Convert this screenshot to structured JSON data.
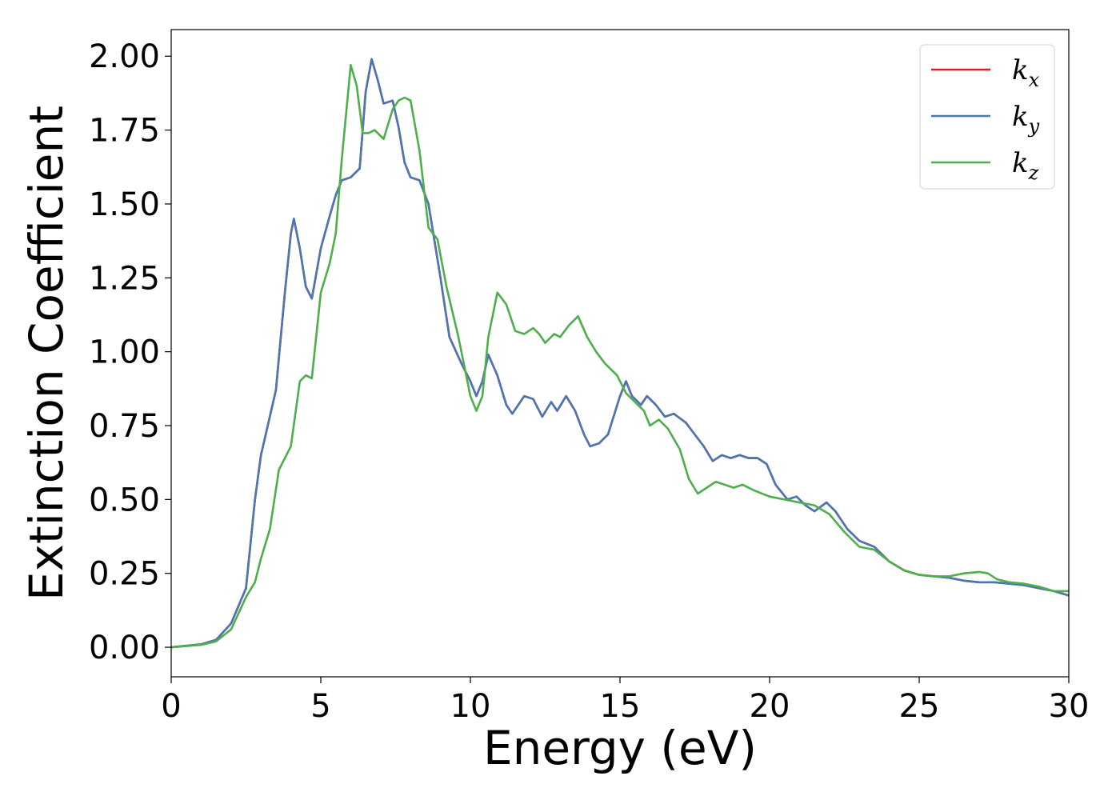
{
  "chart_data": {
    "type": "line",
    "title": "",
    "xlabel": "Energy (eV)",
    "ylabel": "Extinction Coefficient",
    "xlim": [
      0,
      30
    ],
    "ylim": [
      -0.1,
      2.09
    ],
    "x_ticks": [
      "0",
      "5",
      "10",
      "15",
      "20",
      "25",
      "30"
    ],
    "y_ticks": [
      "0.00",
      "0.25",
      "0.50",
      "0.75",
      "1.00",
      "1.25",
      "1.50",
      "1.75",
      "2.00"
    ],
    "grid": false,
    "legend_position": "top-right",
    "series": [
      {
        "name": "k_x",
        "legend_base": "k",
        "legend_sub": "x",
        "color": "#e41a1c",
        "points": [
          [
            0,
            0
          ],
          [
            1,
            0.01
          ],
          [
            1.5,
            0.025
          ],
          [
            2,
            0.08
          ],
          [
            2.5,
            0.2
          ],
          [
            2.8,
            0.5
          ],
          [
            3,
            0.65
          ],
          [
            3.5,
            0.87
          ],
          [
            3.8,
            1.2
          ],
          [
            4,
            1.4
          ],
          [
            4.1,
            1.45
          ],
          [
            4.3,
            1.35
          ],
          [
            4.5,
            1.22
          ],
          [
            4.7,
            1.18
          ],
          [
            5,
            1.35
          ],
          [
            5.3,
            1.46
          ],
          [
            5.5,
            1.53
          ],
          [
            5.7,
            1.58
          ],
          [
            6,
            1.59
          ],
          [
            6.3,
            1.62
          ],
          [
            6.5,
            1.88
          ],
          [
            6.7,
            1.99
          ],
          [
            6.9,
            1.92
          ],
          [
            7.1,
            1.84
          ],
          [
            7.4,
            1.85
          ],
          [
            7.6,
            1.76
          ],
          [
            7.8,
            1.64
          ],
          [
            8,
            1.59
          ],
          [
            8.3,
            1.58
          ],
          [
            8.6,
            1.5
          ],
          [
            9,
            1.25
          ],
          [
            9.3,
            1.05
          ],
          [
            9.7,
            0.96
          ],
          [
            10,
            0.9
          ],
          [
            10.2,
            0.85
          ],
          [
            10.4,
            0.9
          ],
          [
            10.6,
            0.99
          ],
          [
            10.9,
            0.92
          ],
          [
            11.2,
            0.82
          ],
          [
            11.4,
            0.79
          ],
          [
            11.8,
            0.85
          ],
          [
            12.1,
            0.84
          ],
          [
            12.4,
            0.78
          ],
          [
            12.7,
            0.83
          ],
          [
            12.9,
            0.8
          ],
          [
            13.2,
            0.85
          ],
          [
            13.5,
            0.8
          ],
          [
            13.8,
            0.72
          ],
          [
            14,
            0.68
          ],
          [
            14.3,
            0.69
          ],
          [
            14.6,
            0.72
          ],
          [
            15,
            0.85
          ],
          [
            15.2,
            0.9
          ],
          [
            15.4,
            0.85
          ],
          [
            15.7,
            0.82
          ],
          [
            15.9,
            0.85
          ],
          [
            16.2,
            0.82
          ],
          [
            16.5,
            0.78
          ],
          [
            16.8,
            0.79
          ],
          [
            17.2,
            0.76
          ],
          [
            17.5,
            0.72
          ],
          [
            17.8,
            0.68
          ],
          [
            18.1,
            0.63
          ],
          [
            18.4,
            0.65
          ],
          [
            18.7,
            0.64
          ],
          [
            19,
            0.65
          ],
          [
            19.3,
            0.64
          ],
          [
            19.6,
            0.64
          ],
          [
            19.9,
            0.62
          ],
          [
            20.2,
            0.55
          ],
          [
            20.6,
            0.5
          ],
          [
            20.9,
            0.51
          ],
          [
            21.2,
            0.48
          ],
          [
            21.5,
            0.46
          ],
          [
            21.9,
            0.49
          ],
          [
            22.2,
            0.46
          ],
          [
            22.6,
            0.4
          ],
          [
            23,
            0.36
          ],
          [
            23.5,
            0.34
          ],
          [
            24,
            0.29
          ],
          [
            24.5,
            0.26
          ],
          [
            25,
            0.245
          ],
          [
            25.5,
            0.24
          ],
          [
            26,
            0.235
          ],
          [
            26.5,
            0.225
          ],
          [
            27,
            0.22
          ],
          [
            27.5,
            0.22
          ],
          [
            28,
            0.215
          ],
          [
            28.5,
            0.21
          ],
          [
            29,
            0.2
          ],
          [
            29.5,
            0.19
          ],
          [
            30,
            0.175
          ]
        ]
      },
      {
        "name": "k_y",
        "legend_base": "k",
        "legend_sub": "y",
        "color": "#4a77b4",
        "points": [
          [
            0,
            0
          ],
          [
            1,
            0.01
          ],
          [
            1.5,
            0.025
          ],
          [
            2,
            0.08
          ],
          [
            2.5,
            0.2
          ],
          [
            2.8,
            0.5
          ],
          [
            3,
            0.65
          ],
          [
            3.5,
            0.87
          ],
          [
            3.8,
            1.2
          ],
          [
            4,
            1.4
          ],
          [
            4.1,
            1.45
          ],
          [
            4.3,
            1.35
          ],
          [
            4.5,
            1.22
          ],
          [
            4.7,
            1.18
          ],
          [
            5,
            1.35
          ],
          [
            5.3,
            1.46
          ],
          [
            5.5,
            1.53
          ],
          [
            5.7,
            1.58
          ],
          [
            6,
            1.59
          ],
          [
            6.3,
            1.62
          ],
          [
            6.5,
            1.88
          ],
          [
            6.7,
            1.99
          ],
          [
            6.9,
            1.92
          ],
          [
            7.1,
            1.84
          ],
          [
            7.4,
            1.85
          ],
          [
            7.6,
            1.76
          ],
          [
            7.8,
            1.64
          ],
          [
            8,
            1.59
          ],
          [
            8.3,
            1.58
          ],
          [
            8.6,
            1.5
          ],
          [
            9,
            1.25
          ],
          [
            9.3,
            1.05
          ],
          [
            9.7,
            0.96
          ],
          [
            10,
            0.9
          ],
          [
            10.2,
            0.85
          ],
          [
            10.4,
            0.9
          ],
          [
            10.6,
            0.99
          ],
          [
            10.9,
            0.92
          ],
          [
            11.2,
            0.82
          ],
          [
            11.4,
            0.79
          ],
          [
            11.8,
            0.85
          ],
          [
            12.1,
            0.84
          ],
          [
            12.4,
            0.78
          ],
          [
            12.7,
            0.83
          ],
          [
            12.9,
            0.8
          ],
          [
            13.2,
            0.85
          ],
          [
            13.5,
            0.8
          ],
          [
            13.8,
            0.72
          ],
          [
            14,
            0.68
          ],
          [
            14.3,
            0.69
          ],
          [
            14.6,
            0.72
          ],
          [
            15,
            0.85
          ],
          [
            15.2,
            0.9
          ],
          [
            15.4,
            0.85
          ],
          [
            15.7,
            0.82
          ],
          [
            15.9,
            0.85
          ],
          [
            16.2,
            0.82
          ],
          [
            16.5,
            0.78
          ],
          [
            16.8,
            0.79
          ],
          [
            17.2,
            0.76
          ],
          [
            17.5,
            0.72
          ],
          [
            17.8,
            0.68
          ],
          [
            18.1,
            0.63
          ],
          [
            18.4,
            0.65
          ],
          [
            18.7,
            0.64
          ],
          [
            19,
            0.65
          ],
          [
            19.3,
            0.64
          ],
          [
            19.6,
            0.64
          ],
          [
            19.9,
            0.62
          ],
          [
            20.2,
            0.55
          ],
          [
            20.6,
            0.5
          ],
          [
            20.9,
            0.51
          ],
          [
            21.2,
            0.48
          ],
          [
            21.5,
            0.46
          ],
          [
            21.9,
            0.49
          ],
          [
            22.2,
            0.46
          ],
          [
            22.6,
            0.4
          ],
          [
            23,
            0.36
          ],
          [
            23.5,
            0.34
          ],
          [
            24,
            0.29
          ],
          [
            24.5,
            0.26
          ],
          [
            25,
            0.245
          ],
          [
            25.5,
            0.24
          ],
          [
            26,
            0.235
          ],
          [
            26.5,
            0.225
          ],
          [
            27,
            0.22
          ],
          [
            27.5,
            0.22
          ],
          [
            28,
            0.215
          ],
          [
            28.5,
            0.21
          ],
          [
            29,
            0.2
          ],
          [
            29.5,
            0.19
          ],
          [
            30,
            0.175
          ]
        ]
      },
      {
        "name": "k_z",
        "legend_base": "k",
        "legend_sub": "z",
        "color": "#4daf4a",
        "points": [
          [
            0,
            0
          ],
          [
            1,
            0.008
          ],
          [
            1.5,
            0.02
          ],
          [
            2,
            0.06
          ],
          [
            2.5,
            0.17
          ],
          [
            2.8,
            0.22
          ],
          [
            3,
            0.3
          ],
          [
            3.3,
            0.4
          ],
          [
            3.6,
            0.6
          ],
          [
            4,
            0.68
          ],
          [
            4.3,
            0.9
          ],
          [
            4.5,
            0.92
          ],
          [
            4.7,
            0.91
          ],
          [
            5,
            1.2
          ],
          [
            5.3,
            1.3
          ],
          [
            5.5,
            1.4
          ],
          [
            5.7,
            1.65
          ],
          [
            6,
            1.97
          ],
          [
            6.2,
            1.9
          ],
          [
            6.4,
            1.74
          ],
          [
            6.6,
            1.74
          ],
          [
            6.8,
            1.75
          ],
          [
            7.1,
            1.72
          ],
          [
            7.4,
            1.82
          ],
          [
            7.6,
            1.85
          ],
          [
            7.8,
            1.86
          ],
          [
            8,
            1.85
          ],
          [
            8.3,
            1.68
          ],
          [
            8.6,
            1.42
          ],
          [
            8.9,
            1.38
          ],
          [
            9.2,
            1.22
          ],
          [
            9.6,
            1.05
          ],
          [
            10,
            0.85
          ],
          [
            10.2,
            0.8
          ],
          [
            10.4,
            0.85
          ],
          [
            10.6,
            1.05
          ],
          [
            10.9,
            1.2
          ],
          [
            11.2,
            1.16
          ],
          [
            11.5,
            1.07
          ],
          [
            11.8,
            1.06
          ],
          [
            12.1,
            1.08
          ],
          [
            12.3,
            1.06
          ],
          [
            12.5,
            1.03
          ],
          [
            12.8,
            1.06
          ],
          [
            13,
            1.05
          ],
          [
            13.3,
            1.09
          ],
          [
            13.6,
            1.12
          ],
          [
            13.9,
            1.05
          ],
          [
            14.2,
            1.0
          ],
          [
            14.5,
            0.96
          ],
          [
            14.9,
            0.92
          ],
          [
            15.2,
            0.86
          ],
          [
            15.5,
            0.83
          ],
          [
            15.8,
            0.8
          ],
          [
            16,
            0.75
          ],
          [
            16.3,
            0.77
          ],
          [
            16.6,
            0.74
          ],
          [
            17,
            0.67
          ],
          [
            17.3,
            0.57
          ],
          [
            17.6,
            0.52
          ],
          [
            17.9,
            0.54
          ],
          [
            18.2,
            0.56
          ],
          [
            18.5,
            0.55
          ],
          [
            18.8,
            0.54
          ],
          [
            19.1,
            0.55
          ],
          [
            19.5,
            0.53
          ],
          [
            20,
            0.51
          ],
          [
            20.5,
            0.5
          ],
          [
            21,
            0.49
          ],
          [
            21.5,
            0.48
          ],
          [
            22,
            0.45
          ],
          [
            22.5,
            0.39
          ],
          [
            23,
            0.34
          ],
          [
            23.5,
            0.33
          ],
          [
            24,
            0.29
          ],
          [
            24.5,
            0.26
          ],
          [
            25,
            0.245
          ],
          [
            25.5,
            0.24
          ],
          [
            26,
            0.24
          ],
          [
            26.5,
            0.25
          ],
          [
            27,
            0.255
          ],
          [
            27.3,
            0.25
          ],
          [
            27.6,
            0.23
          ],
          [
            28,
            0.22
          ],
          [
            28.5,
            0.215
          ],
          [
            29,
            0.205
          ],
          [
            29.5,
            0.19
          ],
          [
            30,
            0.19
          ]
        ]
      }
    ]
  }
}
